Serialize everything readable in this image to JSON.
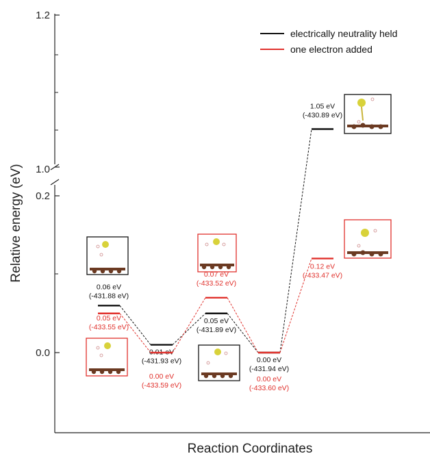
{
  "chart_data": {
    "type": "line",
    "xlabel": "Reaction Coordinates",
    "ylabel": "Relative energy (eV)",
    "y_ticks": [
      "0.0",
      "0.2",
      "1.0",
      "1.2"
    ],
    "y_axis_break": [
      0.2,
      1.0
    ],
    "legend_placement": "top-right",
    "colors": {
      "neutral": "#111111",
      "charged": "#e0302b"
    },
    "series": [
      {
        "name": "electrically neutrality held",
        "x": [
          1,
          2,
          3,
          4,
          5
        ],
        "values": [
          0.06,
          0.01,
          0.05,
          0.0,
          1.05
        ],
        "labels": [
          [
            "0.06 eV",
            "(-431.88 eV)"
          ],
          [
            "0.01 eV",
            "(-431.93 eV)"
          ],
          [
            "0.05 eV",
            "(-431.89 eV)"
          ],
          [
            "0.00 eV",
            "(-431.94 eV)"
          ],
          [
            "1.05 eV",
            "(-430.89 eV)"
          ]
        ]
      },
      {
        "name": "one electron added",
        "x": [
          1,
          2,
          3,
          4,
          5
        ],
        "values": [
          0.05,
          0.0,
          0.07,
          0.0,
          0.12
        ],
        "labels": [
          [
            "0.05 eV",
            "(-433.55 eV)"
          ],
          [
            "0.00 eV",
            "(-433.59 eV)"
          ],
          [
            "0.07 eV",
            "(-433.52 eV)"
          ],
          [
            "0.00 eV",
            "(-433.60 eV)"
          ],
          [
            "0.12 eV",
            "(-433.47 eV)"
          ]
        ]
      }
    ]
  }
}
